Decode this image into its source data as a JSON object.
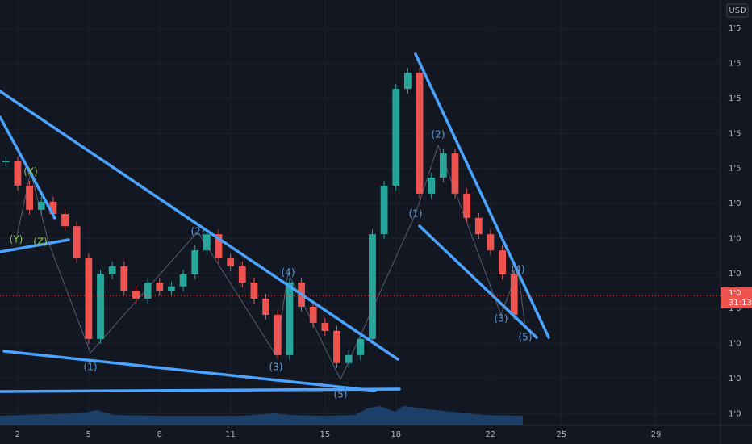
{
  "chart_data": {
    "type": "candlestick",
    "currency": "USD",
    "x": [
      1.5,
      2,
      2.5,
      3,
      3.5,
      4,
      4.5,
      5,
      5.5,
      6,
      6.5,
      7,
      7.5,
      8,
      8.5,
      9,
      9.5,
      10,
      10.5,
      11,
      11.5,
      12,
      12.5,
      13,
      13.5,
      14,
      14.5,
      15,
      15.5,
      16,
      16.5,
      17,
      17.5,
      18,
      18.5,
      19,
      19.5,
      20,
      20.5,
      21,
      21.5,
      22,
      22.5,
      23
    ],
    "values": [
      8.2,
      7.51,
      6.82,
      7.05,
      6.7,
      6.35,
      5.43,
      3.13,
      4.97,
      5.2,
      4.51,
      4.28,
      4.74,
      4.51,
      4.63,
      4.97,
      5.66,
      6.12,
      5.43,
      5.2,
      4.74,
      4.28,
      3.82,
      2.67,
      4.74,
      4.05,
      3.59,
      3.36,
      2.44,
      2.67,
      3.13,
      6.12,
      7.51,
      10.27,
      10.73,
      7.28,
      7.74,
      8.43,
      7.28,
      6.59,
      6.12,
      5.66,
      4.97,
      3.82
    ],
    "up_color": "#26a69a",
    "down_color": "#ef5350",
    "xlim": [
      1.25,
      31.73
    ],
    "xticks": [
      2,
      5,
      8,
      11,
      15,
      18,
      22,
      25,
      29
    ],
    "ylim": [
      0.66,
      12.81
    ],
    "yticks": [
      {
        "value": 12,
        "label": "1'5"
      },
      {
        "value": 11,
        "label": "1'5"
      },
      {
        "value": 10,
        "label": "1'5"
      },
      {
        "value": 9,
        "label": "1'5"
      },
      {
        "value": 8,
        "label": "1'5"
      },
      {
        "value": 7,
        "label": "1'0"
      },
      {
        "value": 6,
        "label": "1'0"
      },
      {
        "value": 5,
        "label": "1'0"
      },
      {
        "value": 4,
        "label": "1'0"
      },
      {
        "value": 3,
        "label": "1'0"
      },
      {
        "value": 2,
        "label": "1'0"
      },
      {
        "value": 1,
        "label": "1'0"
      }
    ],
    "grid": true,
    "last_price": {
      "value": 4.37,
      "label": "1'0"
    },
    "countdown": "31:13",
    "annotations": [
      {
        "text": "(Y)",
        "color": "#8bc34a"
      },
      {
        "text": "(X)",
        "color": "#8bc34a"
      },
      {
        "text": "(Z)",
        "color": "#8bc34a"
      },
      {
        "text": "(1)",
        "color": "#5b9bd5"
      },
      {
        "text": "(2)",
        "color": "#5b9bd5"
      },
      {
        "text": "(3)",
        "color": "#5b9bd5"
      },
      {
        "text": "(4)",
        "color": "#5b9bd5"
      },
      {
        "text": "(5)",
        "color": "#5b9bd5"
      },
      {
        "text": "(1)",
        "color": "#5b9bd5"
      },
      {
        "text": "(2)",
        "color": "#5b9bd5"
      },
      {
        "text": "(3)",
        "color": "#5b9bd5"
      },
      {
        "text": "(4)",
        "color": "#5b9bd5"
      },
      {
        "text": "(5)",
        "color": "#5b9bd5"
      }
    ]
  }
}
